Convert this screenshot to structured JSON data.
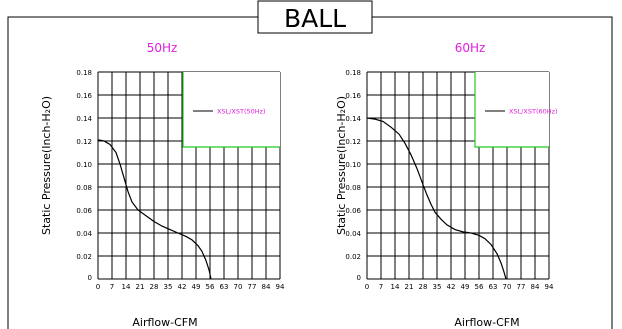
{
  "page": {
    "title": "BALL"
  },
  "colors": {
    "grid": "#000000",
    "curve": "#000000",
    "legend_box": "#22cc22",
    "legend_text": "#e020e0",
    "freq_label": "#e020e0"
  },
  "chart_data": [
    {
      "type": "line",
      "title": "50Hz",
      "xlabel": "Airflow-CFM",
      "ylabel": "Static  Pressure(Inch-H₂O)",
      "x_ticks": [
        "0",
        "7",
        "14",
        "21",
        "28",
        "35",
        "42",
        "49",
        "56",
        "63",
        "70",
        "77",
        "84",
        "94"
      ],
      "y_ticks": [
        "0",
        "0.02",
        "0.04",
        "0.06",
        "0.08",
        "0.10",
        "0.12",
        "0.14",
        "0.16",
        "0.18"
      ],
      "xlim": [
        0,
        91
      ],
      "ylim": [
        0,
        0.18
      ],
      "grid": true,
      "legend_position": "top-right",
      "series": [
        {
          "name": "XSL/XST(50Hz)",
          "points": [
            [
              0,
              0.121
            ],
            [
              3,
              0.12
            ],
            [
              6,
              0.117
            ],
            [
              9,
              0.11
            ],
            [
              11,
              0.1
            ],
            [
              13,
              0.088
            ],
            [
              15,
              0.076
            ],
            [
              17,
              0.067
            ],
            [
              20,
              0.06
            ],
            [
              24,
              0.055
            ],
            [
              28,
              0.05
            ],
            [
              32,
              0.046
            ],
            [
              36,
              0.043
            ],
            [
              40,
              0.04
            ],
            [
              44,
              0.037
            ],
            [
              47,
              0.034
            ],
            [
              50,
              0.029
            ],
            [
              52,
              0.024
            ],
            [
              54,
              0.016
            ],
            [
              55.5,
              0.008
            ],
            [
              56.5,
              0.0
            ]
          ]
        }
      ]
    },
    {
      "type": "line",
      "title": "60Hz",
      "xlabel": "Airflow-CFM",
      "ylabel": "Static  Pressure(Inch-H₂O)",
      "x_ticks": [
        "0",
        "7",
        "14",
        "21",
        "28",
        "35",
        "42",
        "49",
        "56",
        "63",
        "70",
        "77",
        "84",
        "94"
      ],
      "y_ticks": [
        "0",
        "0.02",
        "0.04",
        "0.06",
        "0.08",
        "0.10",
        "0.12",
        "0.14",
        "0.16",
        "0.18"
      ],
      "xlim": [
        0,
        91
      ],
      "ylim": [
        0,
        0.18
      ],
      "grid": true,
      "legend_position": "top-right",
      "series": [
        {
          "name": "XSL/XST(60Hz)",
          "points": [
            [
              0,
              0.14
            ],
            [
              4,
              0.139
            ],
            [
              8,
              0.137
            ],
            [
              12,
              0.132
            ],
            [
              16,
              0.126
            ],
            [
              19,
              0.118
            ],
            [
              22,
              0.108
            ],
            [
              25,
              0.096
            ],
            [
              28,
              0.082
            ],
            [
              30,
              0.073
            ],
            [
              32,
              0.065
            ],
            [
              34,
              0.058
            ],
            [
              37,
              0.052
            ],
            [
              40,
              0.047
            ],
            [
              44,
              0.043
            ],
            [
              48,
              0.041
            ],
            [
              52,
              0.04
            ],
            [
              56,
              0.038
            ],
            [
              59,
              0.035
            ],
            [
              62,
              0.03
            ],
            [
              65,
              0.022
            ],
            [
              67,
              0.014
            ],
            [
              68.5,
              0.006
            ],
            [
              69.5,
              0.0
            ]
          ]
        }
      ]
    }
  ]
}
